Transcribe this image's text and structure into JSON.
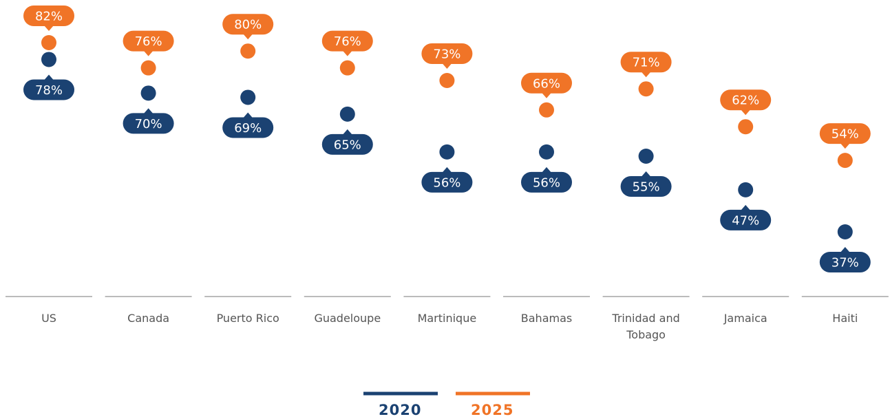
{
  "chart_data": {
    "type": "dot",
    "categories": [
      "US",
      "Canada",
      "Puerto Rico",
      "Guadeloupe",
      "Martinique",
      "Bahamas",
      "Trinidad and Tobago",
      "Jamaica",
      "Haiti"
    ],
    "series": [
      {
        "name": "2020",
        "color": "#1b4272",
        "values": [
          78,
          70,
          69,
          65,
          56,
          56,
          55,
          47,
          37
        ],
        "value_labels": [
          "78%",
          "70%",
          "69%",
          "65%",
          "56%",
          "56%",
          "55%",
          "47%",
          "37%"
        ]
      },
      {
        "name": "2025",
        "color": "#f07427",
        "values": [
          82,
          76,
          80,
          76,
          73,
          66,
          71,
          62,
          54
        ],
        "value_labels": [
          "82%",
          "76%",
          "80%",
          "76%",
          "73%",
          "66%",
          "71%",
          "62%",
          "54%"
        ]
      }
    ]
  }
}
